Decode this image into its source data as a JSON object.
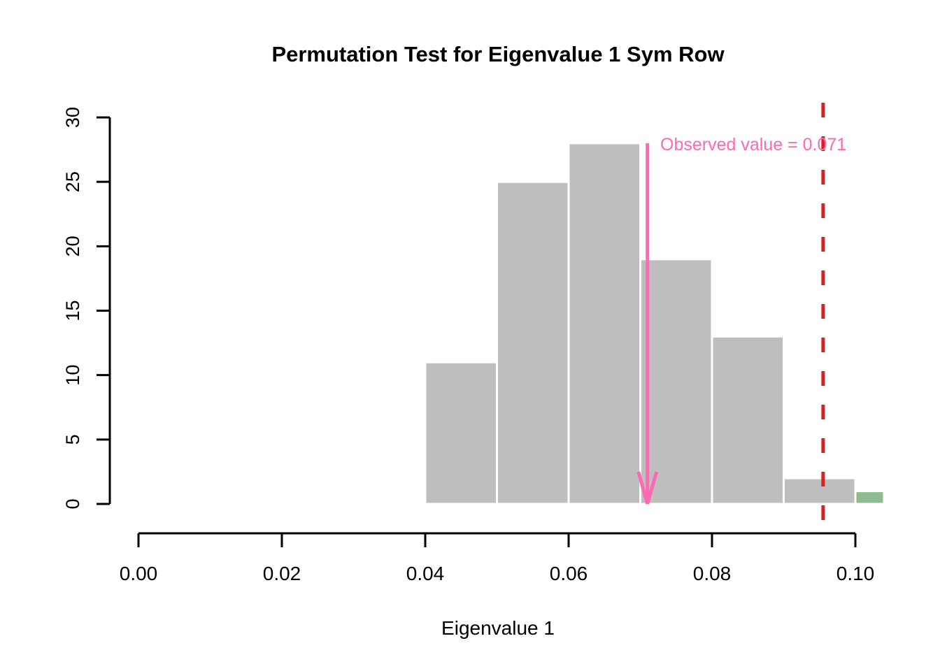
{
  "figure": {
    "title": "Permutation Test for Eigenvalue 1 Sym Row",
    "xlabel": "Eigenvalue 1"
  },
  "chart_data": {
    "type": "bar",
    "subtype": "histogram",
    "title": "Permutation Test for Eigenvalue 1 Sym Row",
    "xlabel": "Eigenvalue 1",
    "ylabel": "",
    "xlim": [
      -0.004,
      0.104
    ],
    "ylim": [
      0,
      30
    ],
    "grid": false,
    "x_tick_values": [
      0.0,
      0.02,
      0.04,
      0.06,
      0.08,
      0.1
    ],
    "x_tick_labels": [
      "0.00",
      "0.02",
      "0.04",
      "0.06",
      "0.08",
      "0.10"
    ],
    "y_tick_values": [
      0,
      5,
      10,
      15,
      20,
      25,
      30
    ],
    "y_tick_labels": [
      "0",
      "5",
      "10",
      "15",
      "20",
      "25",
      "30"
    ],
    "bins": [
      {
        "x0": 0.04,
        "x1": 0.05,
        "count": 11
      },
      {
        "x0": 0.05,
        "x1": 0.06,
        "count": 25
      },
      {
        "x0": 0.06,
        "x1": 0.07,
        "count": 28
      },
      {
        "x0": 0.07,
        "x1": 0.08,
        "count": 19
      },
      {
        "x0": 0.08,
        "x1": 0.09,
        "count": 13
      },
      {
        "x0": 0.09,
        "x1": 0.1,
        "count": 2
      },
      {
        "x0": 0.1,
        "x1": 0.11,
        "count": 1,
        "color": "#8FBC8F"
      }
    ],
    "bar_fill": "#BEBEBE",
    "bar_border": "#FFFFFF",
    "observed": {
      "value": 0.071,
      "label": "Observed value = 0.071",
      "color": "#FF69B4",
      "arrow_from_count": 28,
      "arrow_to_count": 0
    },
    "threshold_line": {
      "value": 0.0955,
      "style": "dashed",
      "color": "#CD2626"
    },
    "axis_color": "#000000"
  }
}
